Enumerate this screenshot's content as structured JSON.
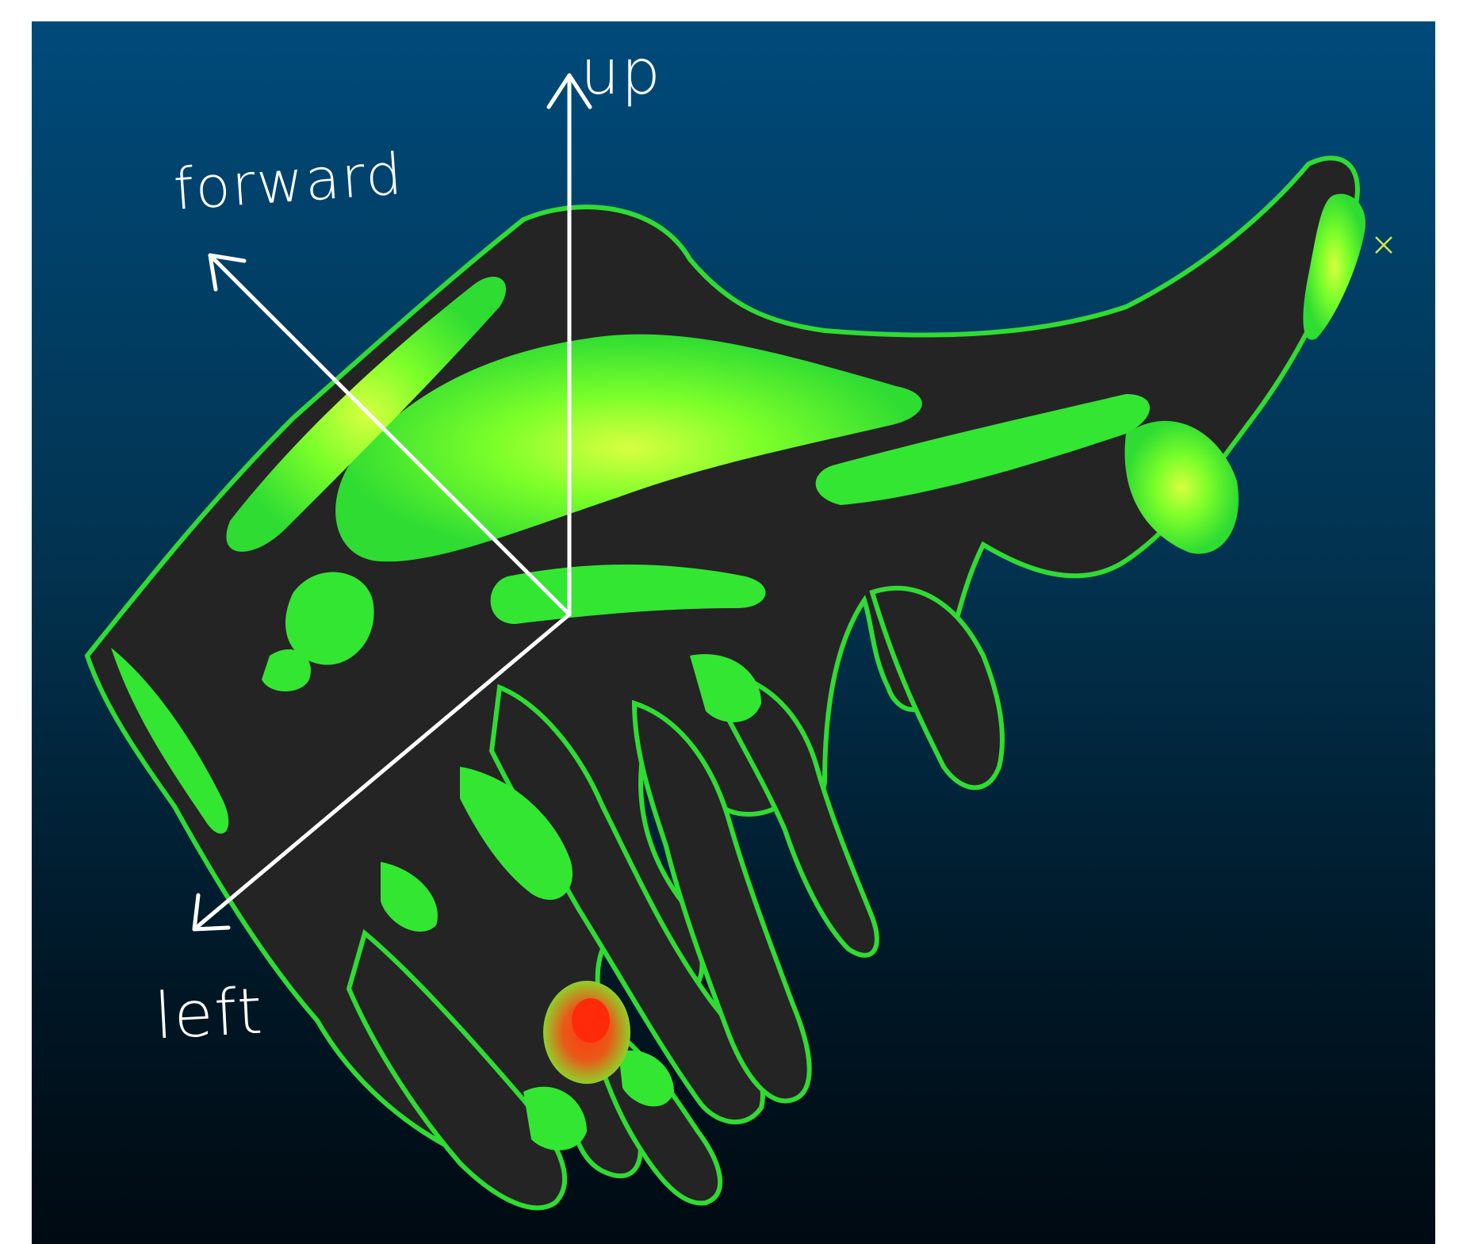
{
  "axes": {
    "up": "up",
    "forward": "forward",
    "left": "left"
  },
  "colors": {
    "background_top": "#004a7a",
    "background_bottom": "#000a12",
    "surface_dark": "#242424",
    "scan_green": "#33e632",
    "scan_highlight": "#c8ff30",
    "hotspot": "#e83a1a",
    "axis": "#ffffff"
  },
  "icons": [
    "cross-marker-icon"
  ]
}
